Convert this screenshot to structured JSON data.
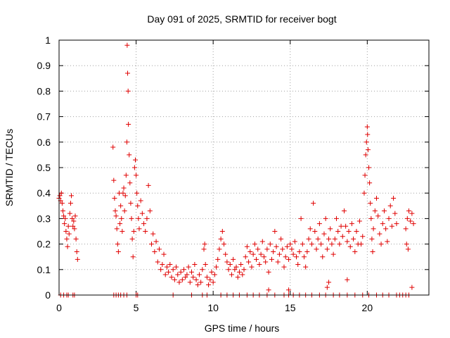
{
  "chart_data": {
    "type": "scatter",
    "title": "Day 091 of 2025, SRMTID for receiver bogt",
    "xlabel": "GPS time / hours",
    "ylabel": "SRMTID / TECUs",
    "xlim": [
      0,
      24
    ],
    "ylim": [
      0,
      1
    ],
    "xticks": [
      0,
      5,
      10,
      15,
      20
    ],
    "xtick_labels": [
      "0",
      "5",
      "10",
      "15",
      "20"
    ],
    "yticks": [
      0,
      0.1,
      0.2,
      0.3,
      0.4,
      0.5,
      0.6,
      0.7,
      0.8,
      0.9,
      1
    ],
    "ytick_labels": [
      "0",
      "0.1",
      "0.2",
      "0.3",
      "0.4",
      "0.5",
      "0.6",
      "0.7",
      "0.8",
      "0.9",
      "1"
    ],
    "grid": true,
    "marker": "+",
    "series": [
      {
        "name": "SRMTID",
        "color": "#e00000",
        "points": [
          [
            0.0,
            0.38
          ],
          [
            0.05,
            0.39
          ],
          [
            0.1,
            0.37
          ],
          [
            0.15,
            0.4
          ],
          [
            0.2,
            0.36
          ],
          [
            0.25,
            0.33
          ],
          [
            0.3,
            0.31
          ],
          [
            0.35,
            0.28
          ],
          [
            0.4,
            0.3
          ],
          [
            0.45,
            0.25
          ],
          [
            0.5,
            0.22
          ],
          [
            0.55,
            0.19
          ],
          [
            0.6,
            0.27
          ],
          [
            0.65,
            0.24
          ],
          [
            0.7,
            0.32
          ],
          [
            0.75,
            0.36
          ],
          [
            0.8,
            0.39
          ],
          [
            0.85,
            0.3
          ],
          [
            0.9,
            0.27
          ],
          [
            0.95,
            0.29
          ],
          [
            1.0,
            0.26
          ],
          [
            1.05,
            0.31
          ],
          [
            1.1,
            0.22
          ],
          [
            1.15,
            0.17
          ],
          [
            1.2,
            0.14
          ],
          [
            0.1,
            0
          ],
          [
            0.3,
            0
          ],
          [
            0.5,
            0
          ],
          [
            0.6,
            0
          ],
          [
            0.9,
            0
          ],
          [
            1.0,
            0
          ],
          [
            3.5,
            0.58
          ],
          [
            3.55,
            0.45
          ],
          [
            3.6,
            0.38
          ],
          [
            3.65,
            0.33
          ],
          [
            3.7,
            0.31
          ],
          [
            3.75,
            0.26
          ],
          [
            3.8,
            0.2
          ],
          [
            3.85,
            0.17
          ],
          [
            3.9,
            0.4
          ],
          [
            3.95,
            0.28
          ],
          [
            4.0,
            0.35
          ],
          [
            4.05,
            0.3
          ],
          [
            4.1,
            0.25
          ],
          [
            4.15,
            0.4
          ],
          [
            4.2,
            0.42
          ],
          [
            4.25,
            0.33
          ],
          [
            4.3,
            0.39
          ],
          [
            4.35,
            0.47
          ],
          [
            4.4,
            0.6
          ],
          [
            4.42,
            0.98
          ],
          [
            4.45,
            0.87
          ],
          [
            4.48,
            0.8
          ],
          [
            4.5,
            0.67
          ],
          [
            4.55,
            0.55
          ],
          [
            4.6,
            0.44
          ],
          [
            4.65,
            0.36
          ],
          [
            4.7,
            0.3
          ],
          [
            4.75,
            0.22
          ],
          [
            4.8,
            0.15
          ],
          [
            4.85,
            0.25
          ],
          [
            4.9,
            0.5
          ],
          [
            4.95,
            0.53
          ],
          [
            5.0,
            0.47
          ],
          [
            5.05,
            0.4
          ],
          [
            5.1,
            0.35
          ],
          [
            5.15,
            0.3
          ],
          [
            5.2,
            0.26
          ],
          [
            5.3,
            0.37
          ],
          [
            5.4,
            0.32
          ],
          [
            5.5,
            0.28
          ],
          [
            5.6,
            0.25
          ],
          [
            5.7,
            0.3
          ],
          [
            5.8,
            0.43
          ],
          [
            5.9,
            0.33
          ],
          [
            6.0,
            0.2
          ],
          [
            6.1,
            0.24
          ],
          [
            6.2,
            0.17
          ],
          [
            6.3,
            0.21
          ],
          [
            6.4,
            0.13
          ],
          [
            6.5,
            0.18
          ],
          [
            6.6,
            0.1
          ],
          [
            6.7,
            0.12
          ],
          [
            6.8,
            0.16
          ],
          [
            6.9,
            0.08
          ],
          [
            7.0,
            0.11
          ],
          [
            3.55,
            0
          ],
          [
            3.7,
            0
          ],
          [
            3.85,
            0
          ],
          [
            4.0,
            0
          ],
          [
            4.2,
            0
          ],
          [
            4.4,
            0
          ],
          [
            5.0,
            0
          ],
          [
            5.1,
            0
          ],
          [
            7.1,
            0.09
          ],
          [
            7.2,
            0.12
          ],
          [
            7.3,
            0.07
          ],
          [
            7.4,
            0.1
          ],
          [
            7.5,
            0.06
          ],
          [
            7.6,
            0.11
          ],
          [
            7.7,
            0.08
          ],
          [
            7.8,
            0.05
          ],
          [
            7.9,
            0.09
          ],
          [
            8.0,
            0.06
          ],
          [
            8.1,
            0.1
          ],
          [
            8.2,
            0.07
          ],
          [
            8.3,
            0.08
          ],
          [
            8.4,
            0.11
          ],
          [
            8.5,
            0.05
          ],
          [
            8.6,
            0.09
          ],
          [
            8.7,
            0.07
          ],
          [
            8.8,
            0.12
          ],
          [
            8.9,
            0.06
          ],
          [
            9.0,
            0.04
          ],
          [
            9.1,
            0.08
          ],
          [
            9.2,
            0.05
          ],
          [
            9.3,
            0.1
          ],
          [
            9.4,
            0.18
          ],
          [
            9.45,
            0.2
          ],
          [
            9.5,
            0.12
          ],
          [
            9.6,
            0.07
          ],
          [
            9.7,
            0.04
          ],
          [
            9.8,
            0.06
          ],
          [
            9.9,
            0.09
          ],
          [
            10.0,
            0.05
          ],
          [
            10.1,
            0.08
          ],
          [
            10.2,
            0.11
          ],
          [
            10.3,
            0.14
          ],
          [
            10.4,
            0.18
          ],
          [
            10.5,
            0.22
          ],
          [
            10.6,
            0.25
          ],
          [
            10.7,
            0.2
          ],
          [
            10.8,
            0.16
          ],
          [
            10.9,
            0.13
          ],
          [
            11.0,
            0.1
          ],
          [
            11.1,
            0.12
          ],
          [
            11.2,
            0.08
          ],
          [
            11.3,
            0.14
          ],
          [
            11.4,
            0.1
          ],
          [
            11.5,
            0.11
          ],
          [
            11.6,
            0.07
          ],
          [
            11.7,
            0.09
          ],
          [
            11.8,
            0.12
          ],
          [
            11.9,
            0.08
          ],
          [
            12.0,
            0.1
          ],
          [
            7.4,
            0
          ],
          [
            8.6,
            0
          ],
          [
            9.3,
            0
          ],
          [
            9.6,
            0
          ],
          [
            10.5,
            0
          ],
          [
            10.9,
            0
          ],
          [
            11.3,
            0
          ],
          [
            11.7,
            0
          ],
          [
            12.1,
            0.15
          ],
          [
            12.2,
            0.19
          ],
          [
            12.3,
            0.13
          ],
          [
            12.4,
            0.17
          ],
          [
            12.5,
            0.11
          ],
          [
            12.6,
            0.16
          ],
          [
            12.7,
            0.2
          ],
          [
            12.8,
            0.14
          ],
          [
            12.9,
            0.18
          ],
          [
            13.0,
            0.12
          ],
          [
            13.1,
            0.16
          ],
          [
            13.2,
            0.21
          ],
          [
            13.3,
            0.15
          ],
          [
            13.4,
            0.13
          ],
          [
            13.5,
            0.18
          ],
          [
            13.6,
            0.09
          ],
          [
            13.7,
            0.2
          ],
          [
            13.8,
            0.14
          ],
          [
            13.9,
            0.17
          ],
          [
            14.0,
            0.25
          ],
          [
            14.1,
            0.19
          ],
          [
            14.2,
            0.13
          ],
          [
            14.3,
            0.16
          ],
          [
            14.4,
            0.22
          ],
          [
            14.5,
            0.18
          ],
          [
            14.6,
            0.11
          ],
          [
            14.7,
            0.15
          ],
          [
            14.8,
            0.19
          ],
          [
            14.9,
            0.14
          ],
          [
            15.0,
            0.2
          ],
          [
            15.1,
            0.18
          ],
          [
            15.2,
            0.16
          ],
          [
            15.3,
            0.21
          ],
          [
            15.4,
            0.15
          ],
          [
            15.5,
            0.12
          ],
          [
            15.6,
            0.17
          ],
          [
            15.7,
            0.3
          ],
          [
            15.8,
            0.2
          ],
          [
            15.9,
            0.15
          ],
          [
            16.0,
            0.11
          ],
          [
            16.1,
            0.17
          ],
          [
            16.2,
            0.22
          ],
          [
            16.3,
            0.26
          ],
          [
            16.4,
            0.2
          ],
          [
            16.5,
            0.36
          ],
          [
            16.6,
            0.25
          ],
          [
            16.7,
            0.18
          ],
          [
            16.8,
            0.22
          ],
          [
            16.9,
            0.28
          ],
          [
            17.0,
            0.2
          ],
          [
            17.1,
            0.15
          ],
          [
            17.2,
            0.24
          ],
          [
            17.3,
            0.3
          ],
          [
            17.4,
            0.18
          ],
          [
            17.5,
            0.22
          ],
          [
            17.6,
            0.26
          ],
          [
            17.7,
            0.2
          ],
          [
            17.8,
            0.16
          ],
          [
            17.9,
            0.22
          ],
          [
            18.0,
            0.3
          ],
          [
            18.1,
            0.25
          ],
          [
            18.2,
            0.2
          ],
          [
            18.3,
            0.27
          ],
          [
            18.4,
            0.23
          ],
          [
            18.5,
            0.33
          ],
          [
            18.6,
            0.27
          ],
          [
            18.7,
            0.21
          ],
          [
            18.8,
            0.25
          ],
          [
            18.9,
            0.19
          ],
          [
            19.0,
            0.28
          ],
          [
            19.1,
            0.22
          ],
          [
            19.2,
            0.17
          ],
          [
            19.3,
            0.25
          ],
          [
            19.4,
            0.2
          ],
          [
            19.5,
            0.29
          ],
          [
            19.6,
            0.2
          ],
          [
            19.7,
            0.23
          ],
          [
            19.8,
            0.4
          ],
          [
            19.85,
            0.47
          ],
          [
            19.9,
            0.55
          ],
          [
            19.95,
            0.6
          ],
          [
            20.0,
            0.66
          ],
          [
            20.02,
            0.63
          ],
          [
            20.05,
            0.57
          ],
          [
            20.1,
            0.5
          ],
          [
            20.15,
            0.44
          ],
          [
            20.2,
            0.36
          ],
          [
            20.25,
            0.3
          ],
          [
            20.3,
            0.22
          ],
          [
            20.35,
            0.17
          ],
          [
            20.4,
            0.26
          ],
          [
            20.5,
            0.33
          ],
          [
            20.6,
            0.38
          ],
          [
            20.7,
            0.31
          ],
          [
            20.8,
            0.24
          ],
          [
            20.9,
            0.2
          ],
          [
            21.0,
            0.28
          ],
          [
            21.1,
            0.33
          ],
          [
            21.2,
            0.26
          ],
          [
            21.3,
            0.21
          ],
          [
            21.4,
            0.3
          ],
          [
            21.5,
            0.35
          ],
          [
            21.6,
            0.27
          ],
          [
            21.7,
            0.38
          ],
          [
            21.8,
            0.32
          ],
          [
            21.9,
            0.28
          ],
          [
            12.2,
            0
          ],
          [
            12.6,
            0
          ],
          [
            13.0,
            0
          ],
          [
            13.5,
            0
          ],
          [
            14.0,
            0
          ],
          [
            14.6,
            0
          ],
          [
            14.9,
            0
          ],
          [
            15.2,
            0
          ],
          [
            15.6,
            0
          ],
          [
            16.0,
            0
          ],
          [
            16.4,
            0
          ],
          [
            16.9,
            0
          ],
          [
            17.3,
            0
          ],
          [
            17.8,
            0
          ],
          [
            18.2,
            0
          ],
          [
            18.7,
            0
          ],
          [
            19.2,
            0
          ],
          [
            19.7,
            0
          ],
          [
            20.1,
            0
          ],
          [
            20.6,
            0
          ],
          [
            21.0,
            0
          ],
          [
            21.4,
            0
          ],
          [
            13.6,
            0.02
          ],
          [
            14.9,
            0.02
          ],
          [
            17.4,
            0.03
          ],
          [
            17.5,
            0.05
          ],
          [
            18.7,
            0.06
          ],
          [
            22.5,
            0.26
          ],
          [
            22.6,
            0.3
          ],
          [
            22.7,
            0.33
          ],
          [
            22.8,
            0.29
          ],
          [
            22.9,
            0.32
          ],
          [
            23.0,
            0.28
          ],
          [
            22.55,
            0.2
          ],
          [
            22.65,
            0.18
          ],
          [
            21.9,
            0
          ],
          [
            22.1,
            0
          ],
          [
            22.3,
            0
          ],
          [
            22.5,
            0
          ],
          [
            22.7,
            0
          ],
          [
            22.9,
            0.03
          ]
        ]
      }
    ]
  }
}
